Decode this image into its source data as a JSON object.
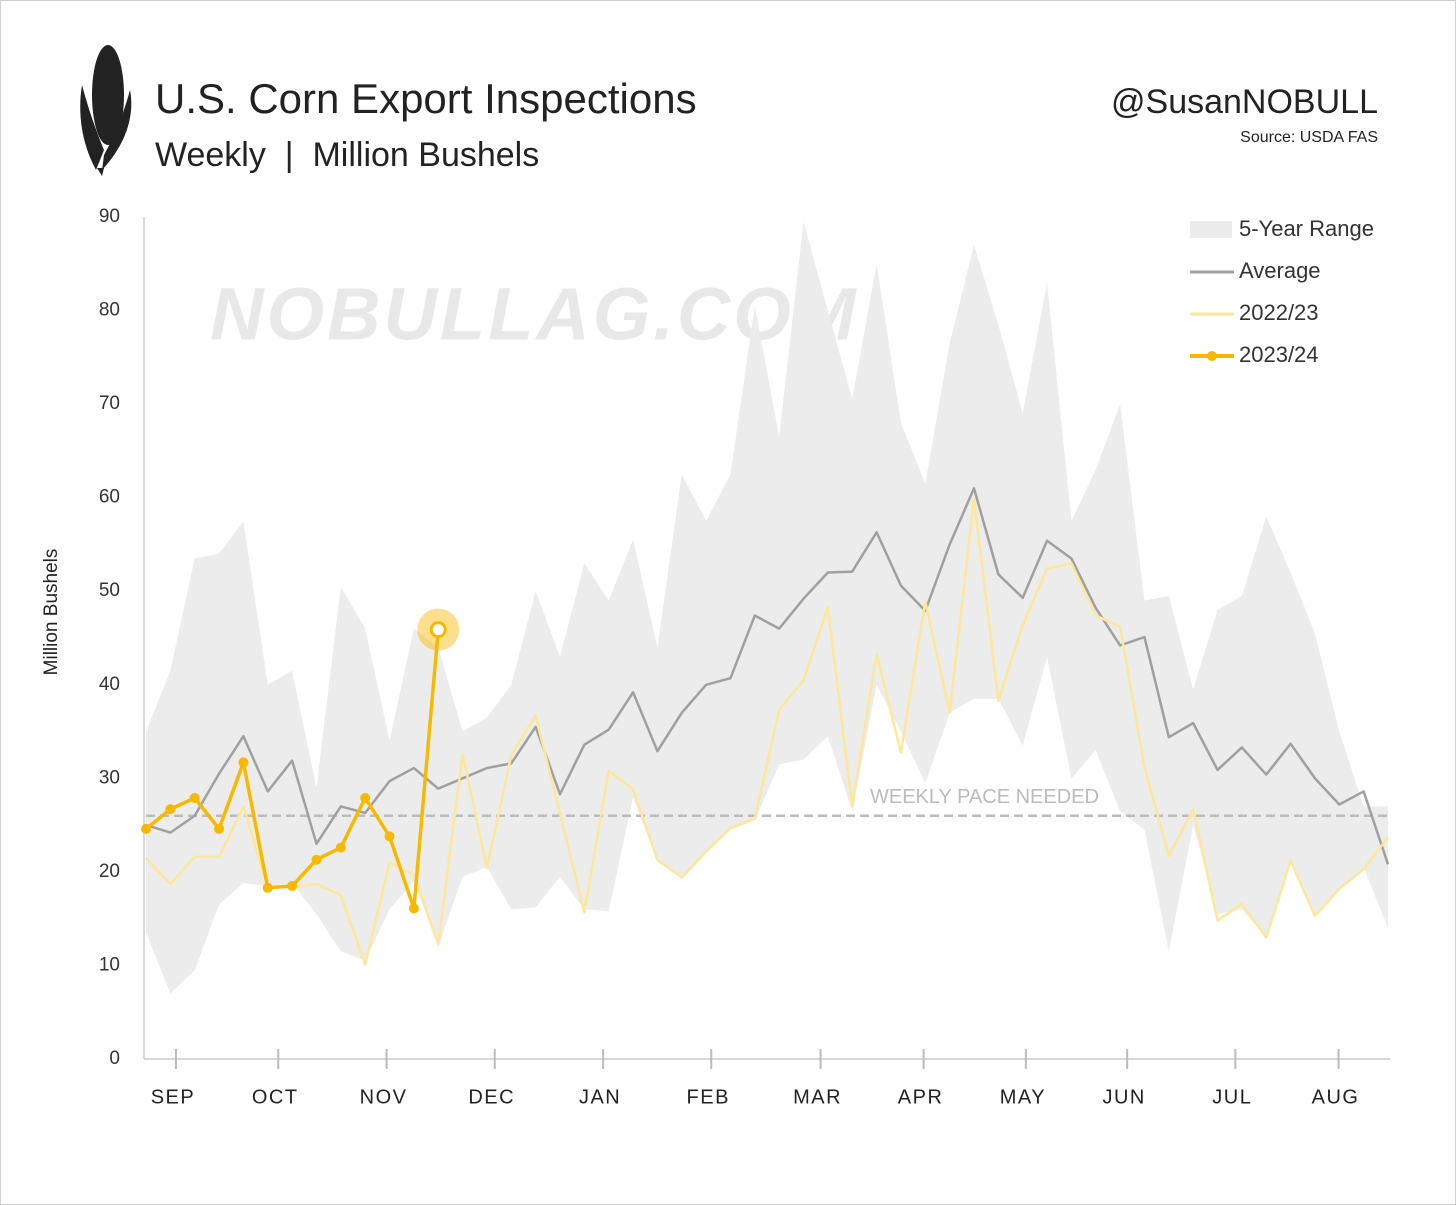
{
  "chart_data": {
    "type": "line",
    "title": "U.S. Corn Export Inspections",
    "subtitle": "Weekly  |  Million Bushels",
    "handle": "@SusanNOBULL",
    "source": "Source: USDA FAS",
    "watermark": "NOBULLAG.COM",
    "y_label": "Million Bushels",
    "ylim": [
      0,
      90
    ],
    "yticks": [
      0,
      10,
      20,
      30,
      40,
      50,
      60,
      70,
      80,
      90
    ],
    "xlim": [
      0,
      51
    ],
    "xticks": [
      {
        "value": 1.23,
        "label": "SEP"
      },
      {
        "value": 5.43,
        "label": "OCT"
      },
      {
        "value": 9.88,
        "label": "NOV"
      },
      {
        "value": 14.32,
        "label": "DEC"
      },
      {
        "value": 18.77,
        "label": "JAN"
      },
      {
        "value": 23.21,
        "label": "FEB"
      },
      {
        "value": 27.7,
        "label": "MAR"
      },
      {
        "value": 31.93,
        "label": "APR"
      },
      {
        "value": 36.13,
        "label": "MAY"
      },
      {
        "value": 40.29,
        "label": "JUN"
      },
      {
        "value": 44.73,
        "label": "JUL"
      },
      {
        "value": 48.97,
        "label": "AUG"
      }
    ],
    "grid": false,
    "legend": "top-right",
    "range": {
      "name": "5-Year Range",
      "color": "#ececec",
      "upper": [
        35,
        41.5,
        53.5,
        54,
        57.5,
        40,
        41.5,
        29,
        50.5,
        46,
        34,
        46,
        44,
        35,
        36.5,
        40,
        50,
        43,
        53,
        49,
        55.5,
        44,
        62.5,
        57.5,
        62.5,
        80.5,
        66.5,
        89.5,
        80,
        70.5,
        85,
        68,
        61.5,
        76.5,
        87,
        78.5,
        69,
        83,
        57.5,
        63,
        70,
        49,
        49.5,
        39.5,
        48,
        49.5,
        58,
        52,
        45.5,
        35,
        27,
        27
      ],
      "lower": [
        13.5,
        7,
        9.5,
        16.5,
        18.8,
        18.5,
        18.8,
        15.5,
        11.5,
        10.5,
        16,
        19,
        12,
        19.5,
        20.5,
        16,
        16.2,
        19.5,
        16,
        15.8,
        28,
        21,
        19.5,
        22,
        24.5,
        25.5,
        31.5,
        32,
        34.5,
        26.5,
        40,
        35,
        29.5,
        37,
        38.5,
        38.5,
        33.5,
        43,
        30,
        33,
        26.5,
        24.5,
        11.5,
        25,
        15.5,
        16,
        13,
        21,
        15.5,
        18,
        20.5,
        14
      ]
    },
    "reference_line": {
      "label": "WEEKLY PACE NEEDED",
      "value": 26,
      "color": "#bbbbbb"
    },
    "series": [
      {
        "name": "Average",
        "color": "#a0a0a0",
        "values": [
          25,
          24.2,
          26,
          30.5,
          34.5,
          28.6,
          31.9,
          23,
          27,
          26.3,
          29.7,
          31.1,
          28.9,
          30,
          31.1,
          31.6,
          35.5,
          28.3,
          33.6,
          35.2,
          39.2,
          32.9,
          37,
          40,
          40.7,
          47.4,
          46,
          49.2,
          52,
          52.1,
          56.3,
          50.6,
          47.9,
          55,
          61,
          51.8,
          49.3,
          55.4,
          53.5,
          48.2,
          44.2,
          45.1,
          34.4,
          35.9,
          30.9,
          33.3,
          30.4,
          33.7,
          30,
          27.2,
          28.6,
          20.8
        ]
      },
      {
        "name": "2022/23",
        "color": "#fde79a",
        "values": [
          21.5,
          18.7,
          21.6,
          21.6,
          27,
          18.3,
          18.4,
          18.7,
          17.5,
          10.1,
          21,
          19.7,
          12.3,
          32.6,
          20.4,
          32.5,
          36.7,
          26.2,
          15.7,
          30.8,
          28.8,
          21.3,
          19.4,
          22.2,
          24.7,
          25.7,
          37.3,
          40.5,
          48.3,
          27,
          43.3,
          32.8,
          48.9,
          37,
          59.9,
          38.3,
          46.4,
          52.4,
          53,
          47.4,
          46.2,
          31.2,
          21.7,
          26.7,
          14.8,
          16.6,
          13,
          21.2,
          15.3,
          18.2,
          20.3,
          23.7
        ]
      },
      {
        "name": "2023/24",
        "color": "#f7b900",
        "markers": true,
        "highlight_last": true,
        "values": [
          24.6,
          26.7,
          27.9,
          24.6,
          31.7,
          18.3,
          18.5,
          21.3,
          22.6,
          27.9,
          23.8,
          16.1,
          45.9
        ]
      }
    ]
  }
}
